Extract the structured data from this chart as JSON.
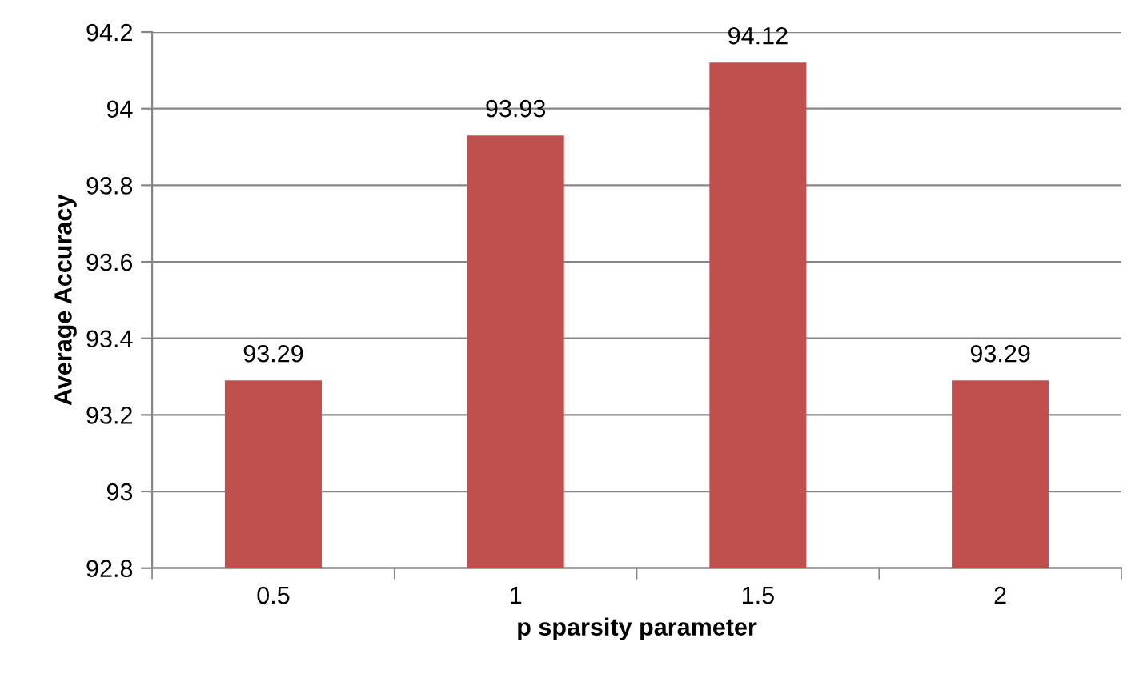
{
  "chart_data": {
    "type": "bar",
    "xlabel": "p sparsity parameter",
    "ylabel": "Average Accuracy",
    "categories": [
      "0.5",
      "1",
      "1.5",
      "2"
    ],
    "series": [
      {
        "color": "#c0504d",
        "values": [
          93.29,
          93.93,
          94.12,
          93.29
        ]
      }
    ],
    "ylim": [
      92.8,
      94.2
    ],
    "yticks": [
      92.8,
      93,
      93.2,
      93.4,
      93.6,
      93.8,
      94,
      94.2
    ],
    "grid": "y",
    "data_labels": true
  }
}
